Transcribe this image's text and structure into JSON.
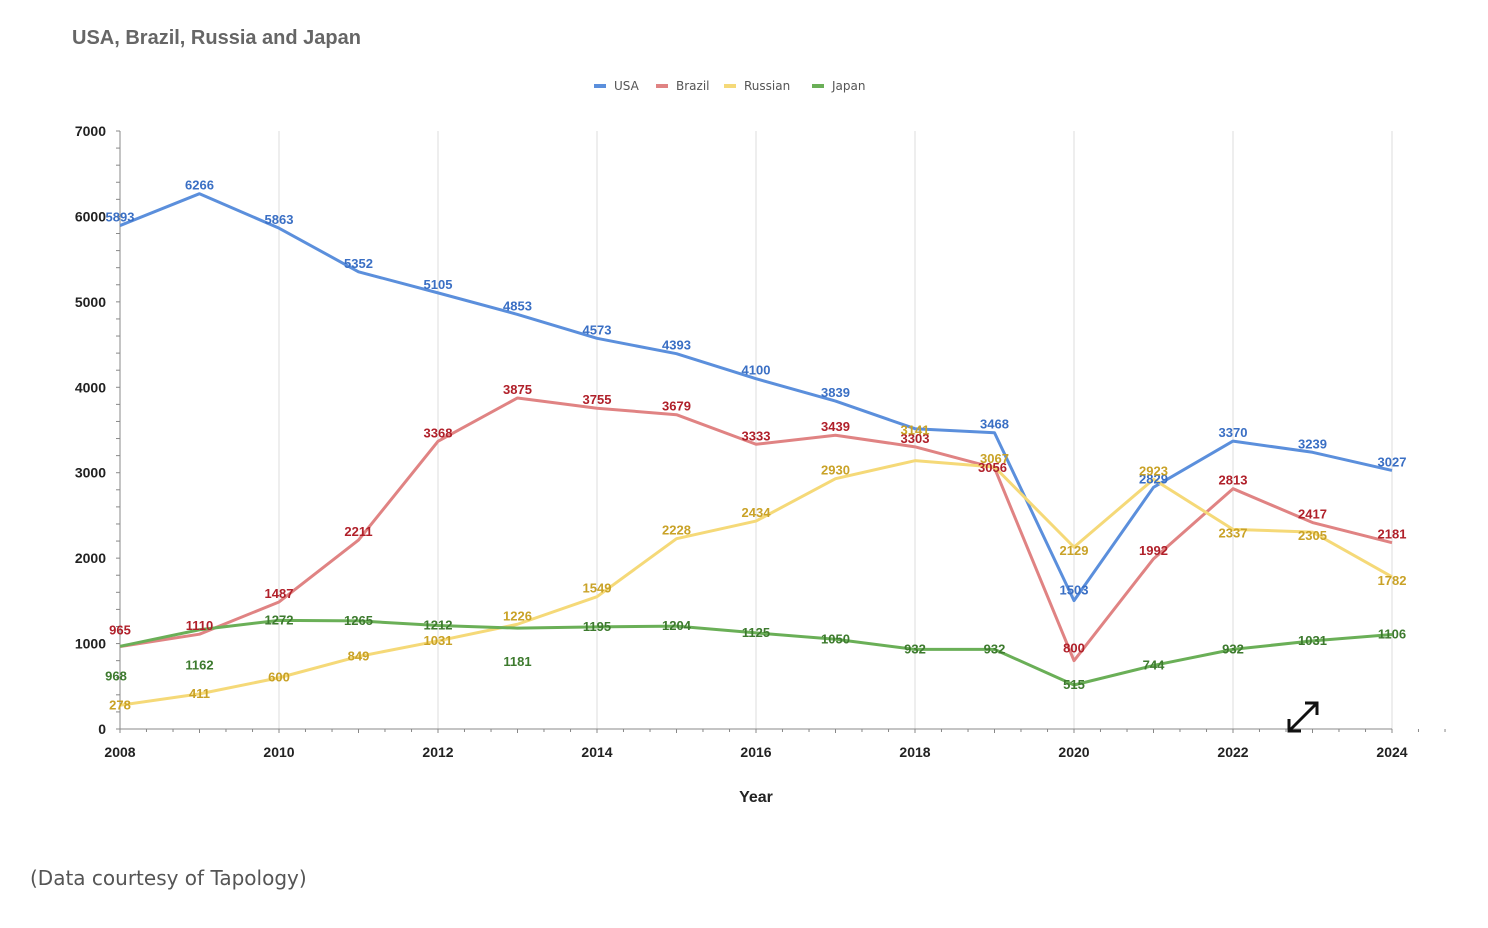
{
  "caption": "(Data courtesy of Tapology)",
  "expand_icon": "expand-arrows-icon",
  "chart_data": {
    "type": "line",
    "title": "USA, Brazil, Russia and Japan",
    "xlabel": "Year",
    "ylabel": "",
    "x": [
      2008,
      2009,
      2010,
      2011,
      2012,
      2013,
      2014,
      2015,
      2016,
      2017,
      2018,
      2019,
      2020,
      2021,
      2022,
      2023,
      2024
    ],
    "xlim": [
      2008,
      2024
    ],
    "ylim": [
      0,
      7000
    ],
    "x_ticks": [
      "2008",
      "2010",
      "2012",
      "2014",
      "2016",
      "2018",
      "2020",
      "2022",
      "2024"
    ],
    "y_ticks": [
      "0",
      "1000",
      "2000",
      "3000",
      "4000",
      "5000",
      "6000",
      "7000"
    ],
    "legend_position": "top-center",
    "series": [
      {
        "name": "USA",
        "color": "#5b8fdc",
        "label_color": "#3a6fc4",
        "values": [
          5893,
          6266,
          5863,
          5352,
          5105,
          4853,
          4573,
          4393,
          4100,
          3839,
          3515,
          3468,
          1503,
          2829,
          3370,
          3239,
          3027
        ],
        "labels": [
          "5893",
          "6266",
          "5863",
          "5352",
          "5105",
          "4853",
          "4573",
          "4393",
          "4100",
          "3839",
          "",
          "3468",
          "1503",
          "2829",
          "3370",
          "3239",
          "3027"
        ]
      },
      {
        "name": "Brazil",
        "color": "#e08383",
        "label_color": "#b0202a",
        "values": [
          965,
          1110,
          1487,
          2211,
          3368,
          3875,
          3755,
          3679,
          3333,
          3439,
          3303,
          3056,
          800,
          1992,
          2813,
          2417,
          2181
        ],
        "labels": [
          "965",
          "1110",
          "1487",
          "2211",
          "3368",
          "3875",
          "3755",
          "3679",
          "3333",
          "3439",
          "3303",
          "3056",
          "800",
          "1992",
          "2813",
          "2417",
          "2181"
        ]
      },
      {
        "name": "Russian",
        "color": "#f5d978",
        "label_color": "#c9a227",
        "values": [
          278,
          411,
          600,
          849,
          1031,
          1226,
          1549,
          2228,
          2434,
          2930,
          3141,
          3067,
          2129,
          2923,
          2337,
          2305,
          1782
        ],
        "labels": [
          "278",
          "411",
          "600",
          "849",
          "1031",
          "1226",
          "1549",
          "2228",
          "2434",
          "2930",
          "3141",
          "3067",
          "2129",
          "2923",
          "2337",
          "2305",
          "1782"
        ]
      },
      {
        "name": "Japan",
        "color": "#6aaf57",
        "label_color": "#3d7a2e",
        "values": [
          968,
          1162,
          1272,
          1265,
          1212,
          1181,
          1195,
          1204,
          1125,
          1050,
          932,
          932,
          515,
          744,
          932,
          1031,
          1106
        ],
        "labels": [
          "968",
          "1162",
          "1272",
          "1265",
          "1212",
          "1181",
          "1195",
          "1204",
          "1125",
          "1050",
          "932",
          "932",
          "515",
          "744",
          "932",
          "1031",
          "1106"
        ]
      }
    ]
  }
}
